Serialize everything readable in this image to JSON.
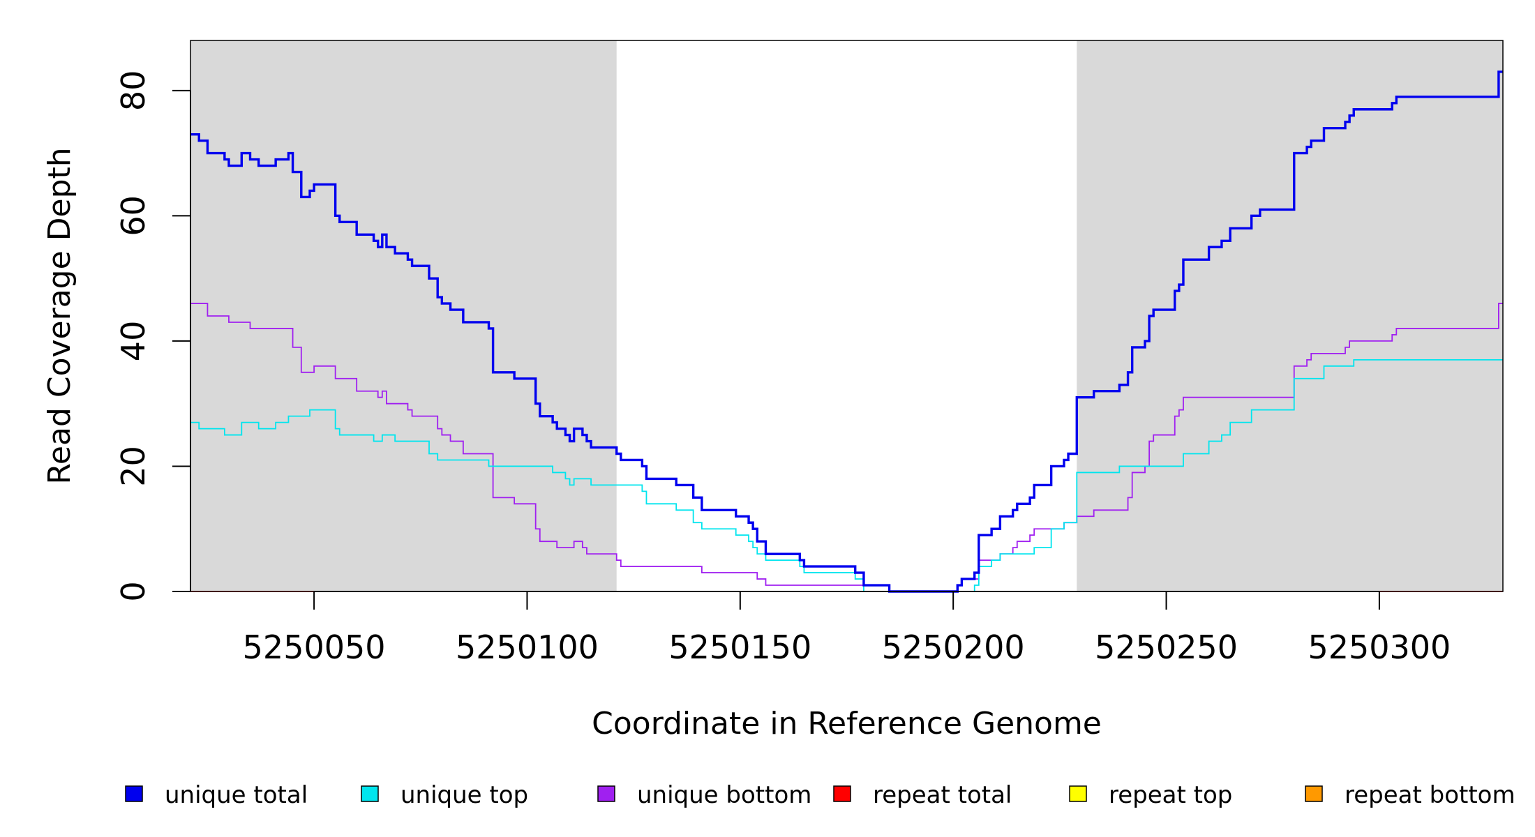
{
  "chart_data": {
    "type": "line",
    "xlabel": "Coordinate in Reference Genome",
    "ylabel": "Read Coverage Depth",
    "xlim": [
      5250021,
      5250329
    ],
    "ylim": [
      0,
      88
    ],
    "x_ticks": [
      5250050,
      5250100,
      5250150,
      5250200,
      5250250,
      5250300
    ],
    "x_tick_labels": [
      "5250050",
      "5250100",
      "5250150",
      "5250200",
      "5250250",
      "5250300"
    ],
    "y_ticks": [
      0,
      20,
      40,
      60,
      80
    ],
    "y_tick_labels": [
      "0",
      "20",
      "40",
      "60",
      "80"
    ],
    "shaded_regions": [
      {
        "x_start": 5250021,
        "x_end": 5250121,
        "color": "#d9d9d9"
      },
      {
        "x_start": 5250229,
        "x_end": 5250329,
        "color": "#d9d9d9"
      }
    ],
    "step": true,
    "legend_position": "bottom",
    "series": [
      {
        "name": "unique total",
        "color": "#0000ee",
        "points": [
          [
            5250021,
            73
          ],
          [
            5250023,
            72
          ],
          [
            5250025,
            70
          ],
          [
            5250029,
            69
          ],
          [
            5250030,
            68
          ],
          [
            5250033,
            70
          ],
          [
            5250035,
            69
          ],
          [
            5250037,
            68
          ],
          [
            5250041,
            69
          ],
          [
            5250044,
            70
          ],
          [
            5250045,
            67
          ],
          [
            5250047,
            63
          ],
          [
            5250049,
            64
          ],
          [
            5250050,
            65
          ],
          [
            5250055,
            60
          ],
          [
            5250056,
            59
          ],
          [
            5250060,
            57
          ],
          [
            5250064,
            56
          ],
          [
            5250065,
            55
          ],
          [
            5250066,
            57
          ],
          [
            5250067,
            55
          ],
          [
            5250069,
            54
          ],
          [
            5250072,
            53
          ],
          [
            5250073,
            52
          ],
          [
            5250077,
            50
          ],
          [
            5250079,
            47
          ],
          [
            5250080,
            46
          ],
          [
            5250082,
            45
          ],
          [
            5250085,
            43
          ],
          [
            5250091,
            42
          ],
          [
            5250092,
            35
          ],
          [
            5250097,
            34
          ],
          [
            5250102,
            30
          ],
          [
            5250103,
            28
          ],
          [
            5250106,
            27
          ],
          [
            5250107,
            26
          ],
          [
            5250109,
            25
          ],
          [
            5250110,
            24
          ],
          [
            5250111,
            26
          ],
          [
            5250113,
            25
          ],
          [
            5250114,
            24
          ],
          [
            5250115,
            23
          ],
          [
            5250121,
            22
          ],
          [
            5250122,
            21
          ],
          [
            5250127,
            20
          ],
          [
            5250128,
            18
          ],
          [
            5250135,
            17
          ],
          [
            5250139,
            15
          ],
          [
            5250141,
            13
          ],
          [
            5250149,
            12
          ],
          [
            5250152,
            11
          ],
          [
            5250153,
            10
          ],
          [
            5250154,
            8
          ],
          [
            5250156,
            6
          ],
          [
            5250164,
            5
          ],
          [
            5250165,
            4
          ],
          [
            5250177,
            3
          ],
          [
            5250179,
            1
          ],
          [
            5250185,
            0
          ],
          [
            5250201,
            1
          ],
          [
            5250202,
            2
          ],
          [
            5250205,
            3
          ],
          [
            5250206,
            9
          ],
          [
            5250209,
            10
          ],
          [
            5250211,
            12
          ],
          [
            5250214,
            13
          ],
          [
            5250215,
            14
          ],
          [
            5250218,
            15
          ],
          [
            5250219,
            17
          ],
          [
            5250223,
            20
          ],
          [
            5250226,
            21
          ],
          [
            5250227,
            22
          ],
          [
            5250229,
            31
          ],
          [
            5250233,
            32
          ],
          [
            5250239,
            33
          ],
          [
            5250241,
            35
          ],
          [
            5250242,
            39
          ],
          [
            5250245,
            40
          ],
          [
            5250246,
            44
          ],
          [
            5250247,
            45
          ],
          [
            5250252,
            48
          ],
          [
            5250253,
            49
          ],
          [
            5250254,
            53
          ],
          [
            5250260,
            55
          ],
          [
            5250263,
            56
          ],
          [
            5250265,
            58
          ],
          [
            5250270,
            60
          ],
          [
            5250272,
            61
          ],
          [
            5250280,
            70
          ],
          [
            5250283,
            71
          ],
          [
            5250284,
            72
          ],
          [
            5250287,
            74
          ],
          [
            5250292,
            75
          ],
          [
            5250293,
            76
          ],
          [
            5250294,
            77
          ],
          [
            5250303,
            78
          ],
          [
            5250304,
            79
          ],
          [
            5250328,
            83
          ],
          [
            5250329,
            83
          ]
        ]
      },
      {
        "name": "unique top",
        "color": "#00e5ee",
        "points": [
          [
            5250021,
            27
          ],
          [
            5250023,
            26
          ],
          [
            5250029,
            25
          ],
          [
            5250033,
            27
          ],
          [
            5250037,
            26
          ],
          [
            5250041,
            27
          ],
          [
            5250044,
            28
          ],
          [
            5250049,
            29
          ],
          [
            5250055,
            26
          ],
          [
            5250056,
            25
          ],
          [
            5250064,
            24
          ],
          [
            5250066,
            25
          ],
          [
            5250069,
            24
          ],
          [
            5250077,
            22
          ],
          [
            5250079,
            21
          ],
          [
            5250091,
            20
          ],
          [
            5250097,
            20
          ],
          [
            5250102,
            20
          ],
          [
            5250106,
            19
          ],
          [
            5250109,
            18
          ],
          [
            5250110,
            17
          ],
          [
            5250111,
            18
          ],
          [
            5250115,
            17
          ],
          [
            5250121,
            17
          ],
          [
            5250127,
            16
          ],
          [
            5250128,
            14
          ],
          [
            5250135,
            13
          ],
          [
            5250139,
            11
          ],
          [
            5250141,
            10
          ],
          [
            5250149,
            9
          ],
          [
            5250152,
            8
          ],
          [
            5250153,
            7
          ],
          [
            5250154,
            6
          ],
          [
            5250156,
            5
          ],
          [
            5250164,
            4
          ],
          [
            5250165,
            3
          ],
          [
            5250177,
            2
          ],
          [
            5250179,
            0
          ],
          [
            5250205,
            1
          ],
          [
            5250206,
            4
          ],
          [
            5250209,
            5
          ],
          [
            5250211,
            6
          ],
          [
            5250219,
            7
          ],
          [
            5250223,
            10
          ],
          [
            5250226,
            11
          ],
          [
            5250229,
            19
          ],
          [
            5250239,
            20
          ],
          [
            5250249,
            20
          ],
          [
            5250254,
            22
          ],
          [
            5250260,
            24
          ],
          [
            5250263,
            25
          ],
          [
            5250265,
            27
          ],
          [
            5250270,
            29
          ],
          [
            5250280,
            34
          ],
          [
            5250287,
            36
          ],
          [
            5250294,
            37
          ],
          [
            5250329,
            37
          ]
        ]
      },
      {
        "name": "unique bottom",
        "color": "#a020f0",
        "points": [
          [
            5250021,
            46
          ],
          [
            5250025,
            44
          ],
          [
            5250030,
            43
          ],
          [
            5250035,
            42
          ],
          [
            5250045,
            39
          ],
          [
            5250047,
            35
          ],
          [
            5250050,
            36
          ],
          [
            5250055,
            34
          ],
          [
            5250060,
            32
          ],
          [
            5250065,
            31
          ],
          [
            5250066,
            32
          ],
          [
            5250067,
            30
          ],
          [
            5250072,
            29
          ],
          [
            5250073,
            28
          ],
          [
            5250079,
            26
          ],
          [
            5250080,
            25
          ],
          [
            5250082,
            24
          ],
          [
            5250085,
            22
          ],
          [
            5250092,
            15
          ],
          [
            5250097,
            14
          ],
          [
            5250102,
            10
          ],
          [
            5250103,
            8
          ],
          [
            5250107,
            7
          ],
          [
            5250111,
            8
          ],
          [
            5250113,
            7
          ],
          [
            5250114,
            6
          ],
          [
            5250121,
            5
          ],
          [
            5250122,
            4
          ],
          [
            5250139,
            4
          ],
          [
            5250141,
            3
          ],
          [
            5250152,
            3
          ],
          [
            5250154,
            2
          ],
          [
            5250156,
            1
          ],
          [
            5250179,
            1
          ],
          [
            5250185,
            0
          ],
          [
            5250201,
            1
          ],
          [
            5250202,
            2
          ],
          [
            5250206,
            5
          ],
          [
            5250211,
            6
          ],
          [
            5250214,
            7
          ],
          [
            5250215,
            8
          ],
          [
            5250218,
            9
          ],
          [
            5250219,
            10
          ],
          [
            5250226,
            11
          ],
          [
            5250229,
            12
          ],
          [
            5250233,
            13
          ],
          [
            5250241,
            15
          ],
          [
            5250242,
            19
          ],
          [
            5250245,
            20
          ],
          [
            5250246,
            24
          ],
          [
            5250247,
            25
          ],
          [
            5250252,
            28
          ],
          [
            5250253,
            29
          ],
          [
            5250254,
            31
          ],
          [
            5250272,
            31
          ],
          [
            5250280,
            36
          ],
          [
            5250283,
            37
          ],
          [
            5250284,
            38
          ],
          [
            5250292,
            39
          ],
          [
            5250293,
            40
          ],
          [
            5250303,
            41
          ],
          [
            5250304,
            42
          ],
          [
            5250328,
            46
          ],
          [
            5250329,
            46
          ]
        ]
      },
      {
        "name": "repeat total",
        "color": "#ff0000",
        "points": [
          [
            5250021,
            0
          ],
          [
            5250329,
            0
          ]
        ]
      },
      {
        "name": "repeat top",
        "color": "#ffff00",
        "points": [
          [
            5250021,
            0
          ],
          [
            5250329,
            0
          ]
        ]
      },
      {
        "name": "repeat bottom",
        "color": "#ff9900",
        "points": [
          [
            5250021,
            0
          ],
          [
            5250329,
            0
          ]
        ]
      }
    ]
  }
}
